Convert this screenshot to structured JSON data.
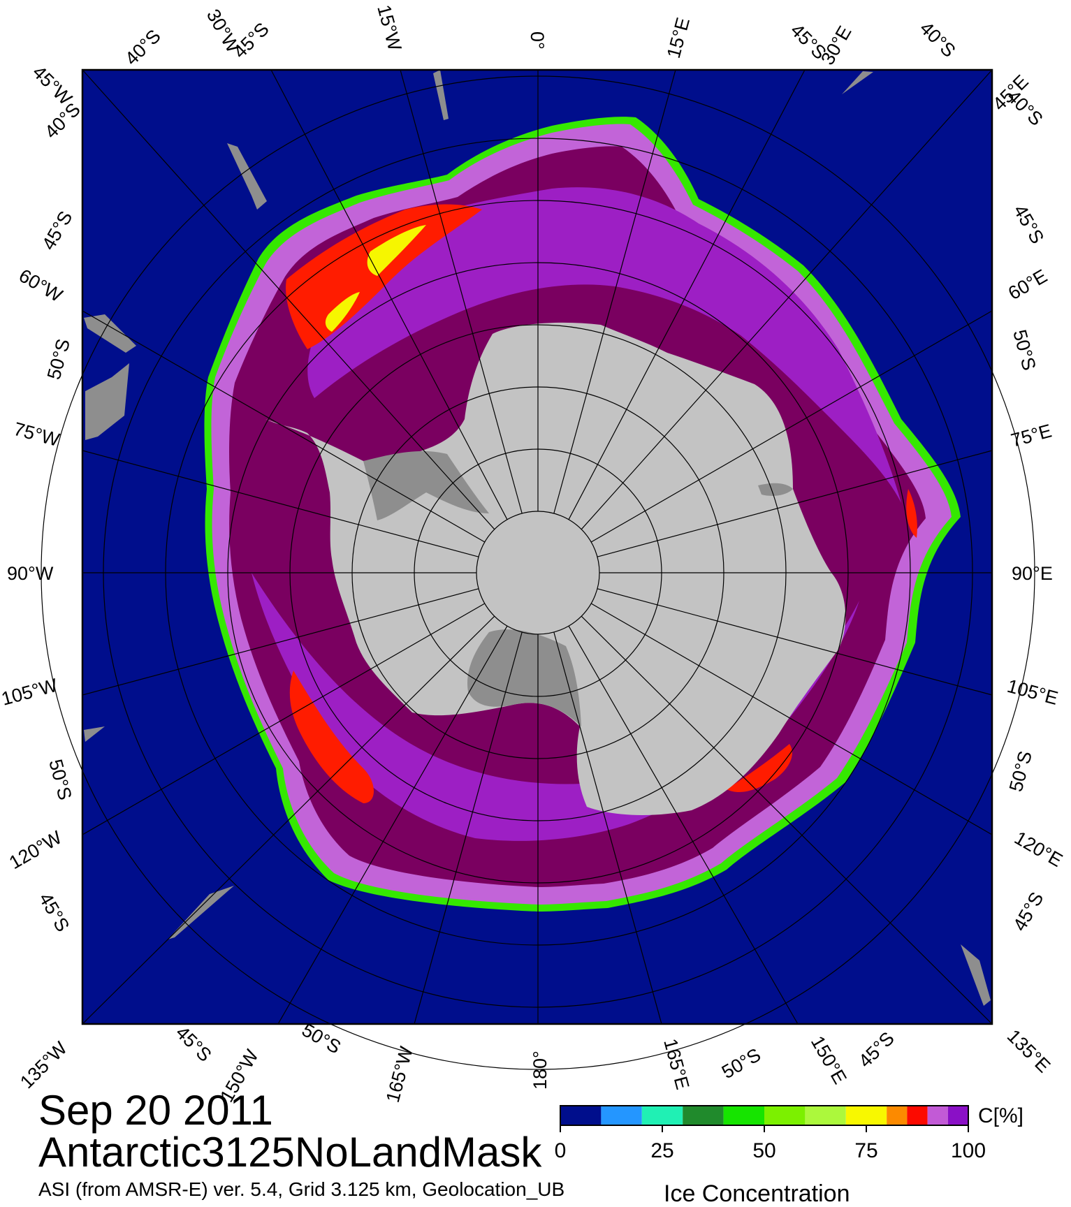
{
  "map": {
    "title_date": "Sep 20 2011",
    "dataset_name": "Antarctic3125NoLandMask",
    "info_line": "ASI (from AMSR-E) ver. 5.4,  Grid 3.125 km, Geolocation_UB",
    "colors": {
      "ocean": "#000e8c",
      "land": "#c3c3c3",
      "ice_shelf": "#8e8e8e",
      "ice_high": "#7a0060",
      "ice_mid": "#9d1fc4",
      "ice_light": "#c264d8",
      "ice_red": "#ff1c00",
      "ice_yellow": "#f6f600",
      "ice_green": "#35e800"
    }
  },
  "graticule_labels": {
    "top": [
      "40°S",
      "30°W",
      "45°S",
      "15°W",
      "0°",
      "15°E",
      "45°S",
      "30°E",
      "40°S"
    ],
    "top_corners": [
      "45°W",
      "45°E"
    ],
    "left": [
      "40°S",
      "45°S",
      "60°W",
      "50°S",
      "75°W",
      "90°W",
      "105°W",
      "50°S",
      "120°W",
      "45°S"
    ],
    "right": [
      "40°S",
      "45°S",
      "60°E",
      "50°S",
      "75°E",
      "90°E",
      "105°E",
      "50°S",
      "120°E",
      "45°S"
    ],
    "bottom": [
      "45°S",
      "150°W",
      "50°S",
      "165°W",
      "180°",
      "165°E",
      "50°S",
      "150°E",
      "45°S"
    ],
    "bottom_corners": [
      "135°W",
      "135°E"
    ]
  },
  "colorbar": {
    "unit_label": "C[%]",
    "caption": "Ice Concentration",
    "ticks": [
      "0",
      "25",
      "50",
      "75",
      "100"
    ],
    "range": [
      0,
      100
    ],
    "segments": [
      {
        "from": 0,
        "to": 10,
        "color": "#000e8c"
      },
      {
        "from": 10,
        "to": 20,
        "color": "#2496ff"
      },
      {
        "from": 20,
        "to": 30,
        "color": "#20f0b4"
      },
      {
        "from": 30,
        "to": 40,
        "color": "#208a2c"
      },
      {
        "from": 40,
        "to": 50,
        "color": "#16e400"
      },
      {
        "from": 50,
        "to": 60,
        "color": "#7cf000"
      },
      {
        "from": 60,
        "to": 70,
        "color": "#acf83c"
      },
      {
        "from": 70,
        "to": 80,
        "color": "#f8f800"
      },
      {
        "from": 80,
        "to": 85,
        "color": "#fc8a00"
      },
      {
        "from": 85,
        "to": 90,
        "color": "#fc0a00"
      },
      {
        "from": 90,
        "to": 95,
        "color": "#c25ad6"
      },
      {
        "from": 95,
        "to": 100,
        "color": "#8a10c6"
      }
    ]
  }
}
